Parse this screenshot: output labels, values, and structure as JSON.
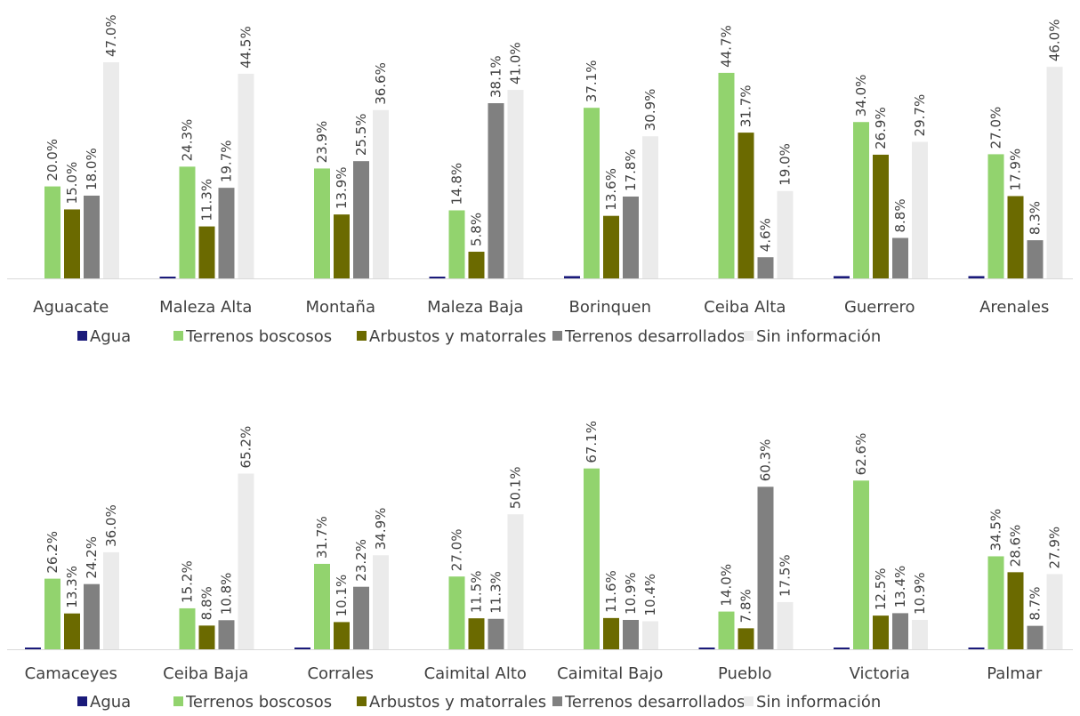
{
  "chart_data": [
    {
      "type": "bar",
      "title": "",
      "xlabel": "",
      "ylabel": "",
      "ylim": [
        0,
        50
      ],
      "grid": false,
      "legend_position": "bottom",
      "categories": [
        "Aguacate",
        "Maleza Alta",
        "Montaña",
        "Maleza Baja",
        "Borinquen",
        "Ceiba Alta",
        "Guerrero",
        "Arenales"
      ],
      "series": [
        {
          "name": "Agua",
          "values": [
            0.0,
            0.1,
            0.0,
            0.2,
            0.5,
            0.0,
            0.5,
            0.5
          ],
          "labels": [
            "",
            "",
            "",
            "",
            "",
            "",
            "",
            ""
          ]
        },
        {
          "name": "Terrenos boscosos",
          "values": [
            20.0,
            24.3,
            23.9,
            14.8,
            37.1,
            44.7,
            34.0,
            27.0
          ],
          "labels": [
            "20.0%",
            "24.3%",
            "23.9%",
            "14.8%",
            "37.1%",
            "44.7%",
            "34.0%",
            "27.0%"
          ]
        },
        {
          "name": "Arbustos y matorrales",
          "values": [
            15.0,
            11.3,
            13.9,
            5.8,
            13.6,
            31.7,
            26.9,
            17.9
          ],
          "labels": [
            "15.0%",
            "11.3%",
            "13.9%",
            "5.8%",
            "13.6%",
            "31.7%",
            "26.9%",
            "17.9%"
          ]
        },
        {
          "name": "Terrenos desarrollados",
          "values": [
            18.0,
            19.7,
            25.5,
            38.1,
            17.8,
            4.6,
            8.8,
            8.3
          ],
          "labels": [
            "18.0%",
            "19.7%",
            "25.5%",
            "38.1%",
            "17.8%",
            "4.6%",
            "8.8%",
            "8.3%"
          ]
        },
        {
          "name": "Sin información",
          "values": [
            47.0,
            44.5,
            36.6,
            41.0,
            30.9,
            19.0,
            29.7,
            46.0
          ],
          "labels": [
            "47.0%",
            "44.5%",
            "36.6%",
            "41.0%",
            "30.9%",
            "19.0%",
            "29.7%",
            "46.0%"
          ]
        }
      ]
    },
    {
      "type": "bar",
      "title": "",
      "xlabel": "",
      "ylabel": "",
      "ylim": [
        0,
        75
      ],
      "grid": false,
      "legend_position": "bottom",
      "categories": [
        "Camaceyes",
        "Ceiba Baja",
        "Corrales",
        "Caimital Alto",
        "Caimital Bajo",
        "Pueblo",
        "Victoria",
        "Palmar"
      ],
      "series": [
        {
          "name": "Agua",
          "values": [
            0.2,
            0.0,
            0.2,
            0.0,
            0.0,
            0.2,
            0.4,
            0.2
          ],
          "labels": [
            "",
            "",
            "",
            "",
            "",
            "",
            "",
            ""
          ]
        },
        {
          "name": "Terrenos boscosos",
          "values": [
            26.2,
            15.2,
            31.7,
            27.0,
            67.1,
            14.0,
            62.6,
            34.5
          ],
          "labels": [
            "26.2%",
            "15.2%",
            "31.7%",
            "27.0%",
            "67.1%",
            "14.0%",
            "62.6%",
            "34.5%"
          ]
        },
        {
          "name": "Arbustos y matorrales",
          "values": [
            13.3,
            8.8,
            10.1,
            11.5,
            11.6,
            7.8,
            12.5,
            28.6
          ],
          "labels": [
            "13.3%",
            "8.8%",
            "10.1%",
            "11.5%",
            "11.6%",
            "7.8%",
            "12.5%",
            "28.6%"
          ]
        },
        {
          "name": "Terrenos desarrollados",
          "values": [
            24.2,
            10.8,
            23.2,
            11.3,
            10.9,
            60.3,
            13.4,
            8.7
          ],
          "labels": [
            "24.2%",
            "10.8%",
            "23.2%",
            "11.3%",
            "10.9%",
            "60.3%",
            "13.4%",
            "8.7%"
          ]
        },
        {
          "name": "Sin información",
          "values": [
            36.0,
            65.2,
            34.9,
            50.1,
            10.4,
            17.5,
            10.9,
            27.9
          ],
          "labels": [
            "36.0%",
            "65.2%",
            "34.9%",
            "50.1%",
            "10.4%",
            "17.5%",
            "10.9%",
            "27.9%"
          ]
        }
      ]
    }
  ],
  "colors": {
    "Agua": "#1a1a7a",
    "Terrenos boscosos": "#92d36e",
    "Arbustos y matorrales": "#6b6a00",
    "Terrenos desarrollados": "#808080",
    "Sin información": "#ebebeb"
  }
}
